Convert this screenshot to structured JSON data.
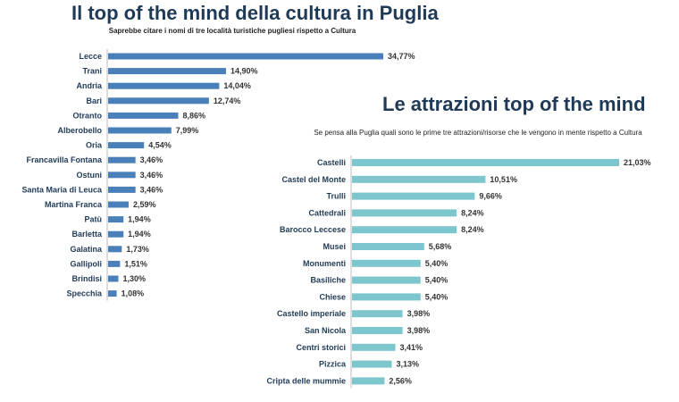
{
  "chart_data": [
    {
      "type": "bar",
      "orientation": "horizontal",
      "title": "Il top of the mind della cultura in Puglia",
      "subtitle": "Saprebbe citare i nomi di tre località turistiche pugliesi rispetto a Cultura",
      "categories": [
        "Lecce",
        "Trani",
        "Andria",
        "Bari",
        "Otranto",
        "Alberobello",
        "Oria",
        "Francavilla Fontana",
        "Ostuni",
        "Santa Maria di Leuca",
        "Martina Franca",
        "Patù",
        "Barletta",
        "Galatina",
        "Gallipoli",
        "Brindisi",
        "Specchia"
      ],
      "values": [
        34.77,
        14.9,
        14.04,
        12.74,
        8.86,
        7.99,
        4.54,
        3.46,
        3.46,
        3.46,
        2.59,
        1.94,
        1.94,
        1.73,
        1.51,
        1.3,
        1.08
      ],
      "labels": [
        "34,77%",
        "14,90%",
        "14,04%",
        "12,74%",
        "8,86%",
        "7,99%",
        "4,54%",
        "3,46%",
        "3,46%",
        "3,46%",
        "2,59%",
        "1,94%",
        "1,94%",
        "1,73%",
        "1,51%",
        "1,30%",
        "1,08%"
      ],
      "unit": "%",
      "color": "#4a80b9",
      "grid": false
    },
    {
      "type": "bar",
      "orientation": "horizontal",
      "title": "Le attrazioni top of the mind",
      "subtitle": "Se pensa alla Puglia quali sono le prime tre attrazioni/risorse che le vengono in mente rispetto a Cultura",
      "categories": [
        "Castelli",
        "Castel del Monte",
        "Trulli",
        "Cattedrali",
        "Barocco Leccese",
        "Musei",
        "Monumenti",
        "Basiliche",
        "Chiese",
        "Castello imperiale",
        "San Nicola",
        "Centri storici",
        "Pizzica",
        "Cripta delle mummie"
      ],
      "values": [
        21.03,
        10.51,
        9.66,
        8.24,
        8.24,
        5.68,
        5.4,
        5.4,
        5.4,
        3.98,
        3.98,
        3.41,
        3.13,
        2.56
      ],
      "labels": [
        "21,03%",
        "10,51%",
        "9,66%",
        "8,24%",
        "8,24%",
        "5,68%",
        "5,40%",
        "5,40%",
        "5,40%",
        "3,98%",
        "3,98%",
        "3,41%",
        "3,13%",
        "2,56%"
      ],
      "unit": "%",
      "color": "#7ec6cd",
      "grid": false
    }
  ]
}
